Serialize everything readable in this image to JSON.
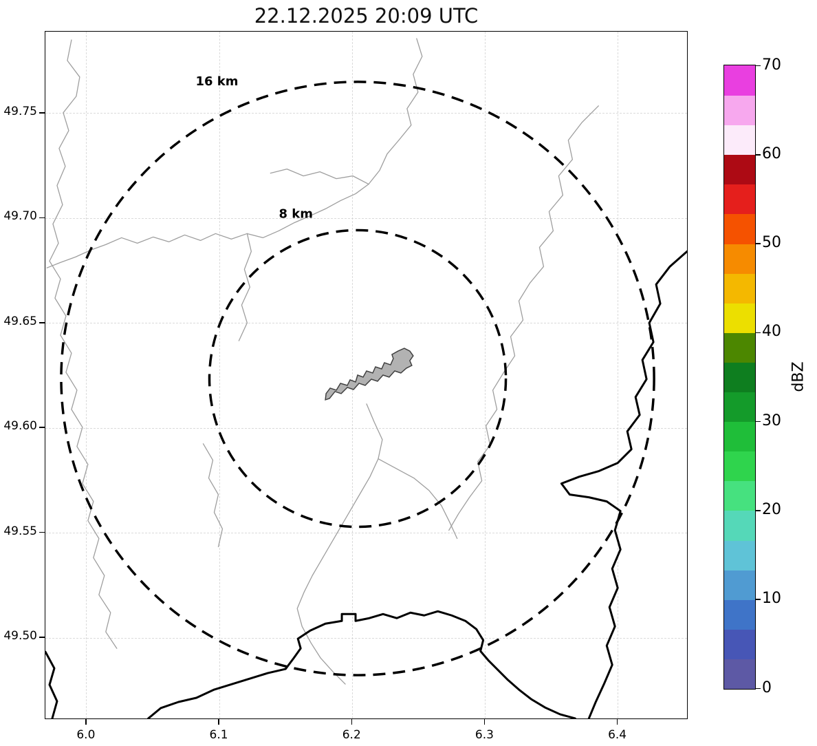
{
  "figure": {
    "title": "22.12.2025 20:09 UTC"
  },
  "chart_data": {
    "type": "heatmap",
    "title": "22.12.2025 20:09 UTC",
    "xlabel": "",
    "ylabel": "",
    "xlim": [
      5.969,
      6.453
    ],
    "ylim": [
      49.461,
      49.789
    ],
    "grid": "faint dashed at tick positions",
    "x_ticks": [
      {
        "value": 6.0,
        "label": "6.0"
      },
      {
        "value": 6.1,
        "label": "6.1"
      },
      {
        "value": 6.2,
        "label": "6.2"
      },
      {
        "value": 6.3,
        "label": "6.3"
      },
      {
        "value": 6.4,
        "label": "6.4"
      }
    ],
    "y_ticks": [
      {
        "value": 49.5,
        "label": "49.50"
      },
      {
        "value": 49.55,
        "label": "49.55"
      },
      {
        "value": 49.6,
        "label": "49.60"
      },
      {
        "value": 49.65,
        "label": "49.65"
      },
      {
        "value": 49.7,
        "label": "49.70"
      },
      {
        "value": 49.75,
        "label": "49.75"
      }
    ],
    "radar_center": {
      "lon": 6.205,
      "lat": 49.623
    },
    "range_rings": [
      {
        "radius_km": 8,
        "label": "8 km"
      },
      {
        "radius_km": 16,
        "label": "16 km"
      }
    ],
    "echoes": [],
    "colorbar": {
      "label": "dBZ",
      "vmin": 0,
      "vmax": 70,
      "ticks": [
        0,
        10,
        20,
        30,
        40,
        50,
        60,
        70
      ],
      "colors_bottom_to_top": [
        "#5d59a5",
        "#4756b6",
        "#3f74c8",
        "#509bd2",
        "#5fc3d7",
        "#55d8b8",
        "#46e17f",
        "#2fd44d",
        "#1fbe39",
        "#149b2a",
        "#0e7e1f",
        "#4c8700",
        "#ecdf00",
        "#f4b800",
        "#f68b00",
        "#f55200",
        "#e51f1c",
        "#ad0a14",
        "#fcebfa",
        "#f7a8ee",
        "#e93fe0"
      ]
    },
    "map_features": {
      "city_polygon_fill": "#b2b2b2",
      "river_line_color": "#9e9e9e",
      "border_line_color": "#000000"
    }
  }
}
